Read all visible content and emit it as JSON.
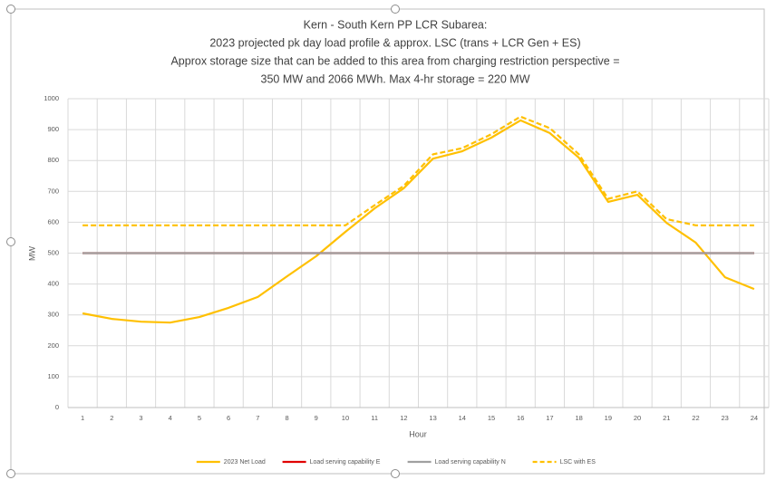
{
  "chart_data": {
    "type": "line",
    "title": [
      "Kern - South Kern PP LCR Subarea:",
      "2023 projected pk day load profile & approx. LSC (trans + LCR Gen + ES)",
      "Approx storage size that can be added to this area from charging restriction perspective =",
      "350 MW and 2066 MWh. Max 4-hr storage = 220 MW"
    ],
    "x_label": "Hour",
    "y_label": "MW",
    "categories": [
      "1",
      "2",
      "3",
      "4",
      "5",
      "6",
      "7",
      "8",
      "9",
      "10",
      "11",
      "12",
      "13",
      "14",
      "15",
      "16",
      "17",
      "18",
      "19",
      "20",
      "21",
      "22",
      "23",
      "24"
    ],
    "series": [
      {
        "name": "2023 Net Load",
        "color": "#ffc000",
        "dash": false,
        "values": [
          305,
          287,
          278,
          275,
          293,
          323,
          358,
          425,
          490,
          569,
          645,
          710,
          806,
          830,
          874,
          930,
          889,
          809,
          666,
          689,
          598,
          534,
          422,
          384
        ]
      },
      {
        "name": "Load serving capability E",
        "color": "#e00000",
        "dash": false,
        "values": [
          500,
          500,
          500,
          500,
          500,
          500,
          500,
          500,
          500,
          500,
          500,
          500,
          500,
          500,
          500,
          500,
          500,
          500,
          500,
          500,
          500,
          500,
          500,
          500
        ]
      },
      {
        "name": "Load serving capability N",
        "color": "#a0a0a0",
        "dash": false,
        "values": [
          500,
          500,
          500,
          500,
          500,
          500,
          500,
          500,
          500,
          500,
          500,
          500,
          500,
          500,
          500,
          500,
          500,
          500,
          500,
          500,
          500,
          500,
          500,
          500
        ]
      },
      {
        "name": "LSC with ES",
        "color": "#ffc000",
        "dash": true,
        "values": [
          590,
          590,
          590,
          590,
          590,
          590,
          590,
          590,
          590,
          590,
          655,
          718,
          820,
          840,
          885,
          942,
          905,
          820,
          676,
          700,
          610,
          590,
          590,
          590
        ]
      }
    ],
    "ylim": [
      0,
      1000
    ],
    "yticks": [
      0,
      100,
      200,
      300,
      400,
      500,
      600,
      700,
      800,
      900,
      1000
    ],
    "grid": true,
    "legend": "bottom"
  }
}
